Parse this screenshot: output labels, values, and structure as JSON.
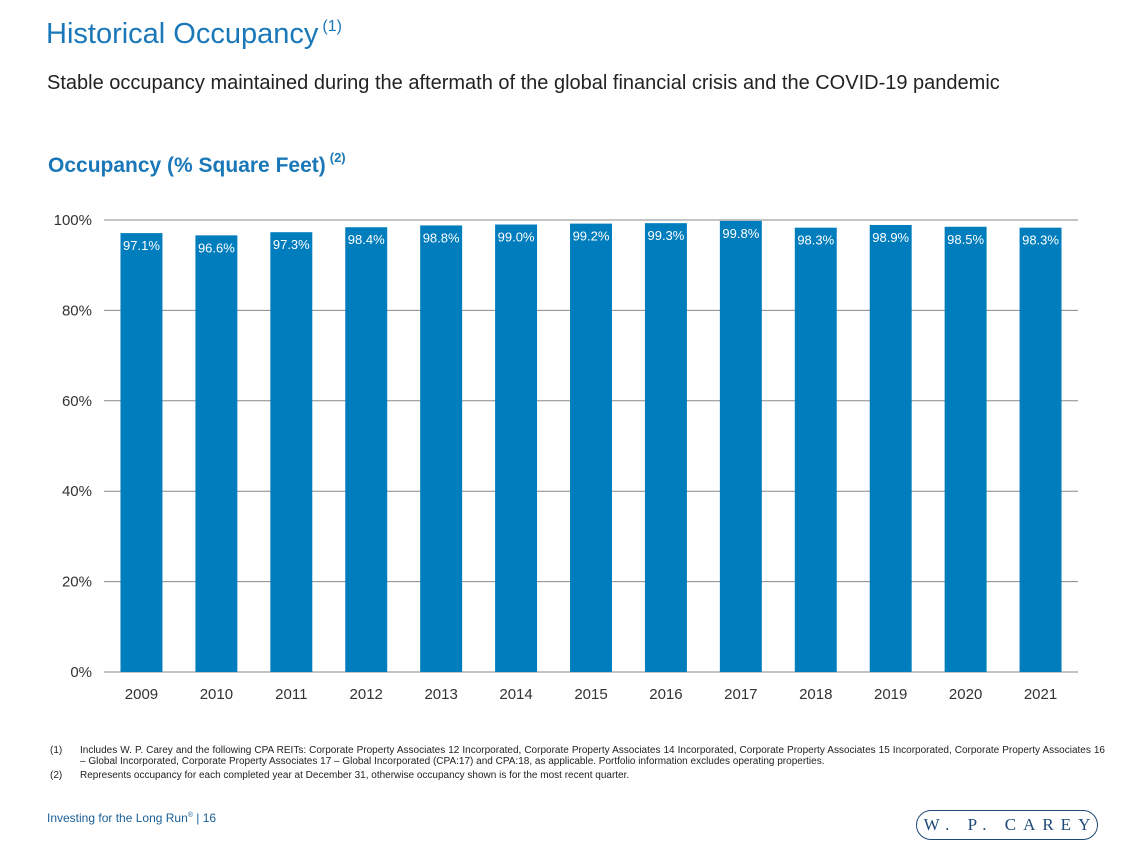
{
  "header": {
    "title": "Historical Occupancy",
    "title_footnote": "(1)",
    "subtitle": "Stable occupancy maintained during the aftermath of the global financial crisis and the COVID-19 pandemic"
  },
  "chart_data": {
    "type": "bar",
    "title": "Occupancy (% Square Feet)",
    "title_footnote": "(2)",
    "categories": [
      "2009",
      "2010",
      "2011",
      "2012",
      "2013",
      "2014",
      "2015",
      "2016",
      "2017",
      "2018",
      "2019",
      "2020",
      "2021"
    ],
    "values": [
      97.1,
      96.6,
      97.3,
      98.4,
      98.8,
      99.0,
      99.2,
      99.3,
      99.8,
      98.3,
      98.9,
      98.5,
      98.3
    ],
    "data_labels": [
      "97.1%",
      "96.6%",
      "97.3%",
      "98.4%",
      "98.8%",
      "99.0%",
      "99.2%",
      "99.3%",
      "99.8%",
      "98.3%",
      "98.9%",
      "98.5%",
      "98.3%"
    ],
    "yticks": [
      0,
      20,
      40,
      60,
      80,
      100
    ],
    "ytick_labels": [
      "0%",
      "20%",
      "40%",
      "60%",
      "80%",
      "100%"
    ],
    "ylim": [
      0,
      100
    ],
    "grid": true,
    "bar_color": "#007dbd",
    "gridline_color": "#888888",
    "data_label_color": "#ffffff"
  },
  "footnotes": [
    {
      "num": "(1)",
      "text": "Includes W. P. Carey and the following CPA REITs: Corporate Property Associates 12 Incorporated, Corporate Property Associates 14 Incorporated, Corporate Property Associates 15 Incorporated, Corporate Property Associates 16 – Global Incorporated, Corporate Property Associates 17 – Global Incorporated (CPA:17) and CPA:18, as applicable. Portfolio information excludes operating properties."
    },
    {
      "num": "(2)",
      "text": "Represents occupancy for each completed year at December 31, otherwise occupancy shown is for the most recent quarter."
    }
  ],
  "footer": {
    "tagline": "Investing for the Long Run",
    "registered_mark": "®",
    "page_sep": " | ",
    "page_number": "16",
    "logo_text": "W. P. CAREY"
  },
  "colors": {
    "accent": "#1a78b8",
    "logo": "#1f4a77"
  }
}
